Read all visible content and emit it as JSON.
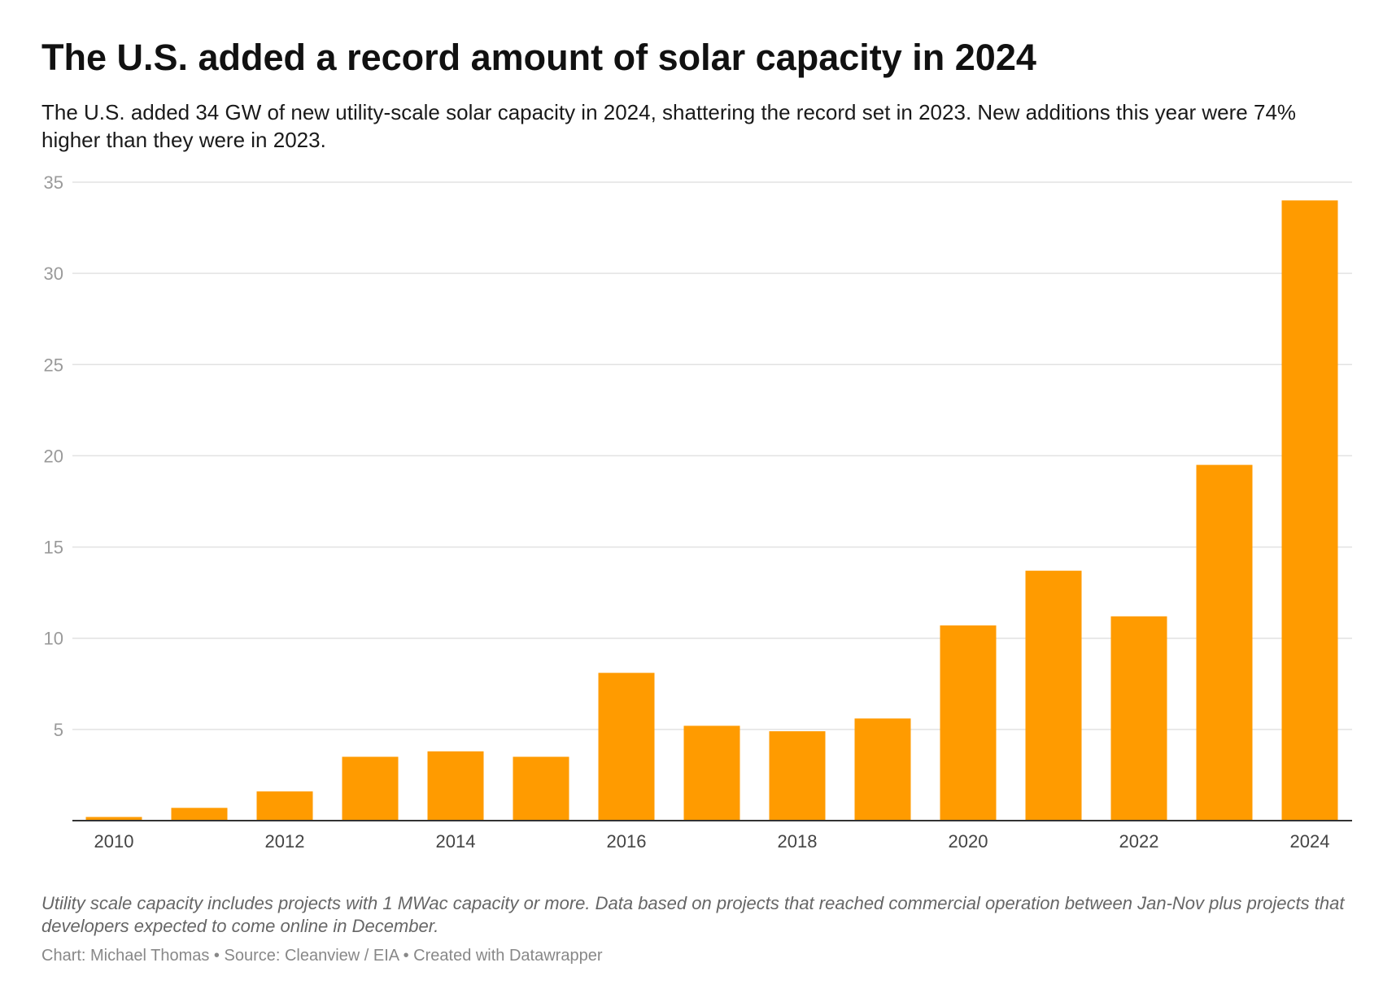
{
  "header": {
    "title": "The U.S. added a record amount of solar capacity in 2024",
    "subtitle": "The U.S. added 34 GW of new utility-scale solar capacity in 2024, shattering the record set in 2023. New additions this year were 74% higher than they were in 2023."
  },
  "footer": {
    "note": "Utility scale capacity includes projects with 1 MWac capacity or more. Data based on projects that reached commercial operation between Jan-Nov plus projects that developers expected to come online in December.",
    "credits": "Chart: Michael Thomas • Source: Cleanview / EIA • Created with Datawrapper"
  },
  "colors": {
    "bar": "#ff9b00",
    "grid": "#e2e2e2",
    "baseline": "#333333"
  },
  "chart_data": {
    "type": "bar",
    "title": "The U.S. added a record amount of solar capacity in 2024",
    "xlabel": "",
    "ylabel": "",
    "categories": [
      "2010",
      "2011",
      "2012",
      "2013",
      "2014",
      "2015",
      "2016",
      "2017",
      "2018",
      "2019",
      "2020",
      "2021",
      "2022",
      "2023",
      "2024"
    ],
    "values": [
      0.2,
      0.7,
      1.6,
      3.5,
      3.8,
      3.5,
      8.1,
      5.2,
      4.9,
      5.6,
      10.7,
      13.7,
      11.2,
      19.5,
      34.0
    ],
    "ylim": [
      0,
      35
    ],
    "yticks": [
      5,
      10,
      15,
      20,
      25,
      30,
      35
    ],
    "xtick_labels": [
      "2010",
      "",
      "2012",
      "",
      "2014",
      "",
      "2016",
      "",
      "2018",
      "",
      "2020",
      "",
      "2022",
      "",
      "2024"
    ],
    "grid": true,
    "legend": "none"
  }
}
